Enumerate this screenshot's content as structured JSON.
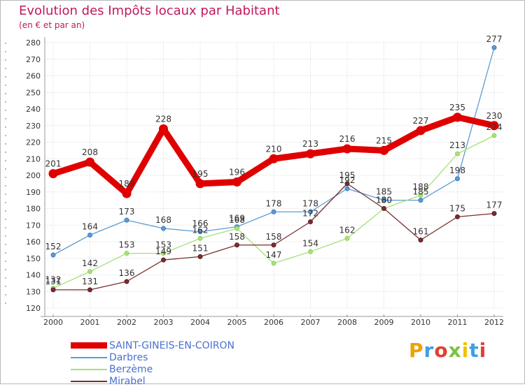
{
  "header": {
    "title": "Evolution des Impôts locaux par Habitant",
    "subtitle": "(en € et par an)"
  },
  "chart_data": {
    "type": "line",
    "title": "Evolution des Impôts locaux par Habitant",
    "subtitle": "(en € et par an)",
    "xlabel": "",
    "ylabel": "",
    "x": [
      "2000",
      "2001",
      "2002",
      "2003",
      "2004",
      "2005",
      "2006",
      "2007",
      "2008",
      "2009",
      "2010",
      "2011",
      "2012"
    ],
    "ylim": [
      120,
      280
    ],
    "yticks": [
      120,
      130,
      140,
      150,
      160,
      170,
      180,
      190,
      200,
      210,
      220,
      230,
      240,
      250,
      260,
      270,
      280
    ],
    "ytick_labels": [
      "120",
      "130",
      "140",
      "150",
      "160",
      "170",
      "180",
      "190",
      "200",
      "210",
      "220",
      "230",
      "240",
      "250",
      "260",
      "270",
      "280"
    ],
    "grid": true,
    "legend_position": "bottom-left",
    "series": [
      {
        "name": "SAINT-GINEIS-EN-COIRON",
        "color": "#e00000",
        "style": "thick",
        "values": [
          201,
          208,
          189,
          228,
          195,
          196,
          210,
          213,
          216,
          215,
          227,
          235,
          230
        ],
        "labels": [
          "201",
          "208",
          "189",
          "228",
          "195",
          "196",
          "210",
          "213",
          "216",
          "215",
          "227",
          "235",
          "230"
        ]
      },
      {
        "name": "Darbres",
        "color": "#5b9bd5",
        "marker": "#3a78c2",
        "style": "thin",
        "values": [
          152,
          164,
          173,
          168,
          166,
          169,
          178,
          178,
          192,
          185,
          185,
          198,
          277
        ],
        "labels": [
          "152",
          "164",
          "173",
          "168",
          "166",
          "169",
          "178",
          "178",
          "192",
          "185",
          "185",
          "198",
          "277"
        ]
      },
      {
        "name": "Berzème",
        "color": "#a8e07a",
        "marker": "#8fd45a",
        "style": "thin",
        "values": [
          132,
          142,
          153,
          153,
          162,
          168,
          147,
          154,
          162,
          180,
          188,
          213,
          224
        ],
        "labels": [
          "132",
          "142",
          "153",
          "153",
          "162",
          "168",
          "147",
          "154",
          "162",
          "180",
          "188",
          "213",
          "224"
        ]
      },
      {
        "name": "Mirabel",
        "color": "#7a2e2e",
        "marker": "#5c1f1f",
        "style": "thin",
        "values": [
          131,
          131,
          136,
          149,
          151,
          158,
          158,
          172,
          195,
          180,
          161,
          175,
          177
        ],
        "labels": [
          "131",
          "131",
          "136",
          "149",
          "151",
          "158",
          "158",
          "172",
          "195",
          "180",
          "161",
          "175",
          "177"
        ]
      }
    ]
  },
  "logo": {
    "letters": [
      "P",
      "r",
      "o",
      "x",
      "i",
      "t",
      "i"
    ],
    "colors": [
      "#f0a000",
      "#3fa0e0",
      "#e04030",
      "#7cc242",
      "#f0c000",
      "#3fa0e0",
      "#e04030"
    ]
  }
}
